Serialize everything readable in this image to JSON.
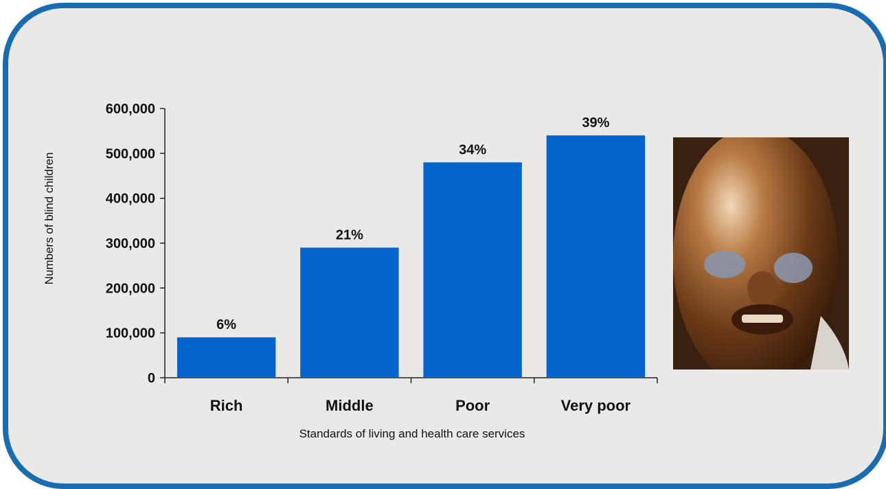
{
  "chart_data": {
    "type": "bar",
    "categories": [
      "Rich",
      "Middle",
      "Poor",
      "Very poor"
    ],
    "values": [
      90000,
      290000,
      480000,
      540000
    ],
    "data_labels": [
      "6%",
      "21%",
      "34%",
      "39%"
    ],
    "yticks": [
      "0",
      "100,000",
      "200,000",
      "300,000",
      "400,000",
      "500,000",
      "600,000"
    ],
    "xlabel": "Standards of living and health care services",
    "ylabel": "Numbers of blind children",
    "ylim": [
      0,
      600000
    ],
    "grid": false,
    "colors": {
      "bar": "#0563cc",
      "frame": "#1a6cb0",
      "background": "#ebe9e7"
    }
  },
  "photo": {
    "description_icon": "child-photo"
  }
}
